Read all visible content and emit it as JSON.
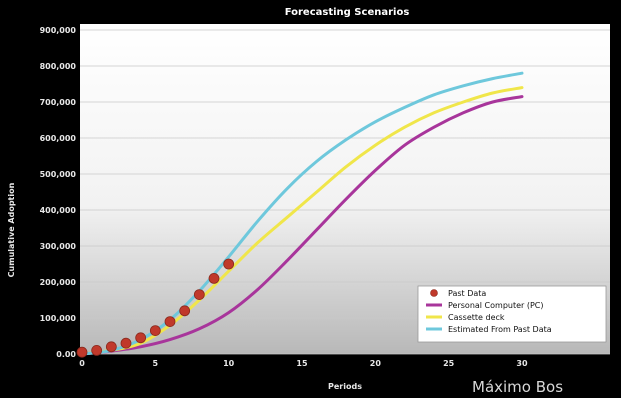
{
  "chart_data": {
    "type": "line",
    "title": "Forecasting Scenarios",
    "xlabel": "Periods",
    "ylabel": "Cumulative Adoption",
    "xlim": [
      0,
      30
    ],
    "ylim": [
      0,
      900000
    ],
    "x_ticks": [
      "0",
      "5",
      "10",
      "15",
      "20",
      "25",
      "30"
    ],
    "y_ticks": [
      "0.00",
      "100,000",
      "200,000",
      "300,000",
      "400,000",
      "500,000",
      "600,000",
      "700,000",
      "800,000",
      "900,000"
    ],
    "grid": true,
    "legend_position": "bottom-right",
    "scatter_series": {
      "name": "Past Data",
      "color": "#c0392b",
      "x": [
        0,
        1,
        2,
        3,
        4,
        5,
        6,
        7,
        8,
        9,
        10
      ],
      "y": [
        5000,
        10000,
        20000,
        30000,
        45000,
        65000,
        90000,
        120000,
        165000,
        210000,
        250000
      ]
    },
    "series": [
      {
        "name": "Personal Computer (PC)",
        "color": "#a8359b",
        "x": [
          0,
          2,
          4,
          6,
          8,
          10,
          12,
          14,
          16,
          18,
          20,
          22,
          24,
          26,
          28,
          30
        ],
        "y": [
          0,
          8000,
          20000,
          40000,
          70000,
          115000,
          180000,
          260000,
          345000,
          430000,
          510000,
          580000,
          630000,
          670000,
          700000,
          715000
        ]
      },
      {
        "name": "Cassette deck",
        "color": "#f0e64a",
        "x": [
          0,
          2,
          4,
          6,
          8,
          10,
          12,
          14,
          16,
          18,
          20,
          22,
          24,
          26,
          28,
          30
        ],
        "y": [
          0,
          10000,
          30000,
          80000,
          150000,
          230000,
          310000,
          380000,
          450000,
          520000,
          580000,
          630000,
          670000,
          700000,
          725000,
          740000
        ]
      },
      {
        "name": "Estimated From Past Data",
        "color": "#6ec8dc",
        "x": [
          0,
          2,
          4,
          6,
          8,
          10,
          12,
          14,
          16,
          18,
          20,
          22,
          24,
          26,
          28,
          30
        ],
        "y": [
          0,
          10000,
          40000,
          95000,
          175000,
          270000,
          370000,
          460000,
          535000,
          595000,
          645000,
          685000,
          720000,
          745000,
          765000,
          780000
        ]
      }
    ]
  },
  "watermark": "Máximo Bos"
}
